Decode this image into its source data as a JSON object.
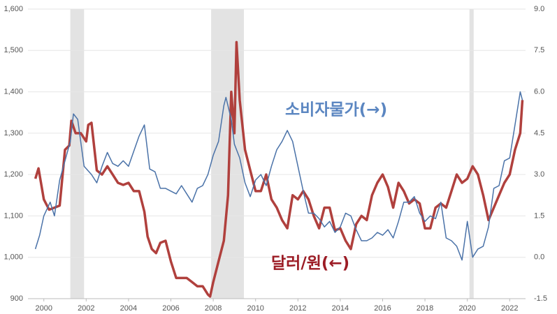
{
  "chart_data": {
    "type": "line",
    "xlim": [
      1999.25,
      2022.75
    ],
    "xticks": [
      2000,
      2002,
      2004,
      2006,
      2008,
      2010,
      2012,
      2014,
      2016,
      2018,
      2020,
      2022
    ],
    "ylim": [
      900,
      1600
    ],
    "yticks": [
      {
        "value": 900,
        "label": "900"
      },
      {
        "value": 1000,
        "label": "1,000"
      },
      {
        "value": 1100,
        "label": "1,100"
      },
      {
        "value": 1200,
        "label": "1,200"
      },
      {
        "value": 1300,
        "label": "1,300"
      },
      {
        "value": 1400,
        "label": "1,400"
      },
      {
        "value": 1500,
        "label": "1,500"
      },
      {
        "value": 1600,
        "label": "1,600"
      }
    ],
    "y2lim": [
      -1.5,
      9.0
    ],
    "y2ticks": [
      -1.5,
      {
        "value": 0,
        "label": "0.0"
      },
      1.5,
      {
        "value": 3,
        "label": "3.0"
      },
      4.5,
      {
        "value": 6,
        "label": "6.0"
      },
      7.5,
      {
        "value": 9,
        "label": "9.0"
      }
    ],
    "grid": true,
    "recessions": [
      [
        2001.25,
        2001.9
      ],
      [
        2007.9,
        2009.45
      ],
      [
        2020.1,
        2020.3
      ]
    ],
    "recession_color": "#e3e3e3",
    "series": [
      {
        "name": "달러/원(←)",
        "color": "#b0403d",
        "label_color": "#9c1c25",
        "axis": "y",
        "x": [
          1999.6,
          1999.75,
          2000.0,
          2000.25,
          2000.5,
          2000.75,
          2001.0,
          2001.2,
          2001.3,
          2001.5,
          2001.75,
          2002.0,
          2002.1,
          2002.25,
          2002.5,
          2002.75,
          2003.0,
          2003.25,
          2003.5,
          2003.75,
          2004.0,
          2004.25,
          2004.5,
          2004.75,
          2004.9,
          2005.1,
          2005.3,
          2005.5,
          2005.75,
          2006.0,
          2006.25,
          2006.5,
          2006.75,
          2007.0,
          2007.25,
          2007.5,
          2007.75,
          2007.85,
          2008.0,
          2008.25,
          2008.5,
          2008.7,
          2008.85,
          2009.0,
          2009.1,
          2009.25,
          2009.5,
          2009.75,
          2010.0,
          2010.25,
          2010.5,
          2010.75,
          2011.0,
          2011.25,
          2011.5,
          2011.75,
          2012.0,
          2012.25,
          2012.5,
          2012.75,
          2013.0,
          2013.25,
          2013.5,
          2013.75,
          2014.0,
          2014.25,
          2014.5,
          2014.75,
          2015.0,
          2015.25,
          2015.5,
          2015.75,
          2016.0,
          2016.25,
          2016.5,
          2016.75,
          2017.0,
          2017.25,
          2017.5,
          2017.75,
          2018.0,
          2018.25,
          2018.5,
          2018.75,
          2019.0,
          2019.25,
          2019.5,
          2019.75,
          2020.0,
          2020.25,
          2020.5,
          2020.75,
          2021.0,
          2021.25,
          2021.5,
          2021.75,
          2022.0,
          2022.25,
          2022.5,
          2022.6
        ],
        "values": [
          1190,
          1215,
          1140,
          1115,
          1120,
          1125,
          1260,
          1270,
          1330,
          1300,
          1300,
          1280,
          1320,
          1325,
          1210,
          1200,
          1220,
          1200,
          1180,
          1175,
          1180,
          1160,
          1160,
          1110,
          1050,
          1020,
          1010,
          1035,
          1040,
          990,
          950,
          950,
          950,
          940,
          930,
          930,
          910,
          905,
          940,
          990,
          1040,
          1150,
          1400,
          1300,
          1520,
          1380,
          1260,
          1210,
          1160,
          1160,
          1200,
          1140,
          1120,
          1090,
          1070,
          1150,
          1140,
          1160,
          1140,
          1100,
          1070,
          1120,
          1120,
          1065,
          1070,
          1040,
          1020,
          1080,
          1100,
          1090,
          1150,
          1180,
          1200,
          1170,
          1120,
          1180,
          1160,
          1130,
          1140,
          1130,
          1070,
          1070,
          1120,
          1130,
          1120,
          1160,
          1200,
          1180,
          1190,
          1220,
          1200,
          1150,
          1090,
          1120,
          1150,
          1180,
          1200,
          1260,
          1300,
          1380
        ]
      },
      {
        "name": "소비자물가(→)",
        "color": "#4a72a8",
        "label_color": "#5b86c1",
        "axis": "y2",
        "x": [
          1999.6,
          1999.8,
          2000.0,
          2000.3,
          2000.5,
          2000.75,
          2001.0,
          2001.25,
          2001.4,
          2001.6,
          2001.9,
          2002.25,
          2002.5,
          2002.75,
          2003.0,
          2003.25,
          2003.5,
          2003.75,
          2004.0,
          2004.5,
          2004.75,
          2005.0,
          2005.25,
          2005.5,
          2005.75,
          2006.0,
          2006.25,
          2006.5,
          2006.75,
          2007.0,
          2007.25,
          2007.5,
          2007.75,
          2008.0,
          2008.25,
          2008.5,
          2008.6,
          2008.85,
          2009.0,
          2009.25,
          2009.5,
          2009.75,
          2010.0,
          2010.25,
          2010.5,
          2010.75,
          2011.0,
          2011.25,
          2011.5,
          2011.75,
          2012.0,
          2012.25,
          2012.5,
          2012.75,
          2013.0,
          2013.25,
          2013.5,
          2013.75,
          2014.0,
          2014.25,
          2014.5,
          2014.75,
          2015.0,
          2015.25,
          2015.5,
          2015.75,
          2016.0,
          2016.25,
          2016.5,
          2016.75,
          2017.0,
          2017.25,
          2017.5,
          2017.75,
          2018.0,
          2018.25,
          2018.5,
          2018.75,
          2019.0,
          2019.25,
          2019.5,
          2019.75,
          2020.0,
          2020.25,
          2020.5,
          2020.75,
          2021.0,
          2021.25,
          2021.5,
          2021.75,
          2022.0,
          2022.25,
          2022.5,
          2022.6
        ],
        "values": [
          0.3,
          0.8,
          1.5,
          2.0,
          1.5,
          2.8,
          3.5,
          4.2,
          5.2,
          5.0,
          3.3,
          3.0,
          2.7,
          3.3,
          3.8,
          3.4,
          3.3,
          3.5,
          3.3,
          4.4,
          4.8,
          3.2,
          3.1,
          2.5,
          2.5,
          2.4,
          2.3,
          2.6,
          2.3,
          2.0,
          2.5,
          2.6,
          3.0,
          3.7,
          4.2,
          5.5,
          5.8,
          5.0,
          4.1,
          3.6,
          2.7,
          2.2,
          2.8,
          3.0,
          2.6,
          3.3,
          3.9,
          4.2,
          4.6,
          4.2,
          3.3,
          2.4,
          1.6,
          1.6,
          1.4,
          1.1,
          1.3,
          0.9,
          1.1,
          1.6,
          1.5,
          1.0,
          0.6,
          0.6,
          0.7,
          0.9,
          0.8,
          1.0,
          0.7,
          1.3,
          2.0,
          2.0,
          2.2,
          1.6,
          1.3,
          1.5,
          1.4,
          2.0,
          0.7,
          0.6,
          0.4,
          -0.1,
          1.3,
          0.0,
          0.3,
          0.4,
          1.1,
          2.5,
          2.6,
          3.5,
          3.6,
          4.8,
          6.0,
          5.7
        ]
      }
    ]
  }
}
